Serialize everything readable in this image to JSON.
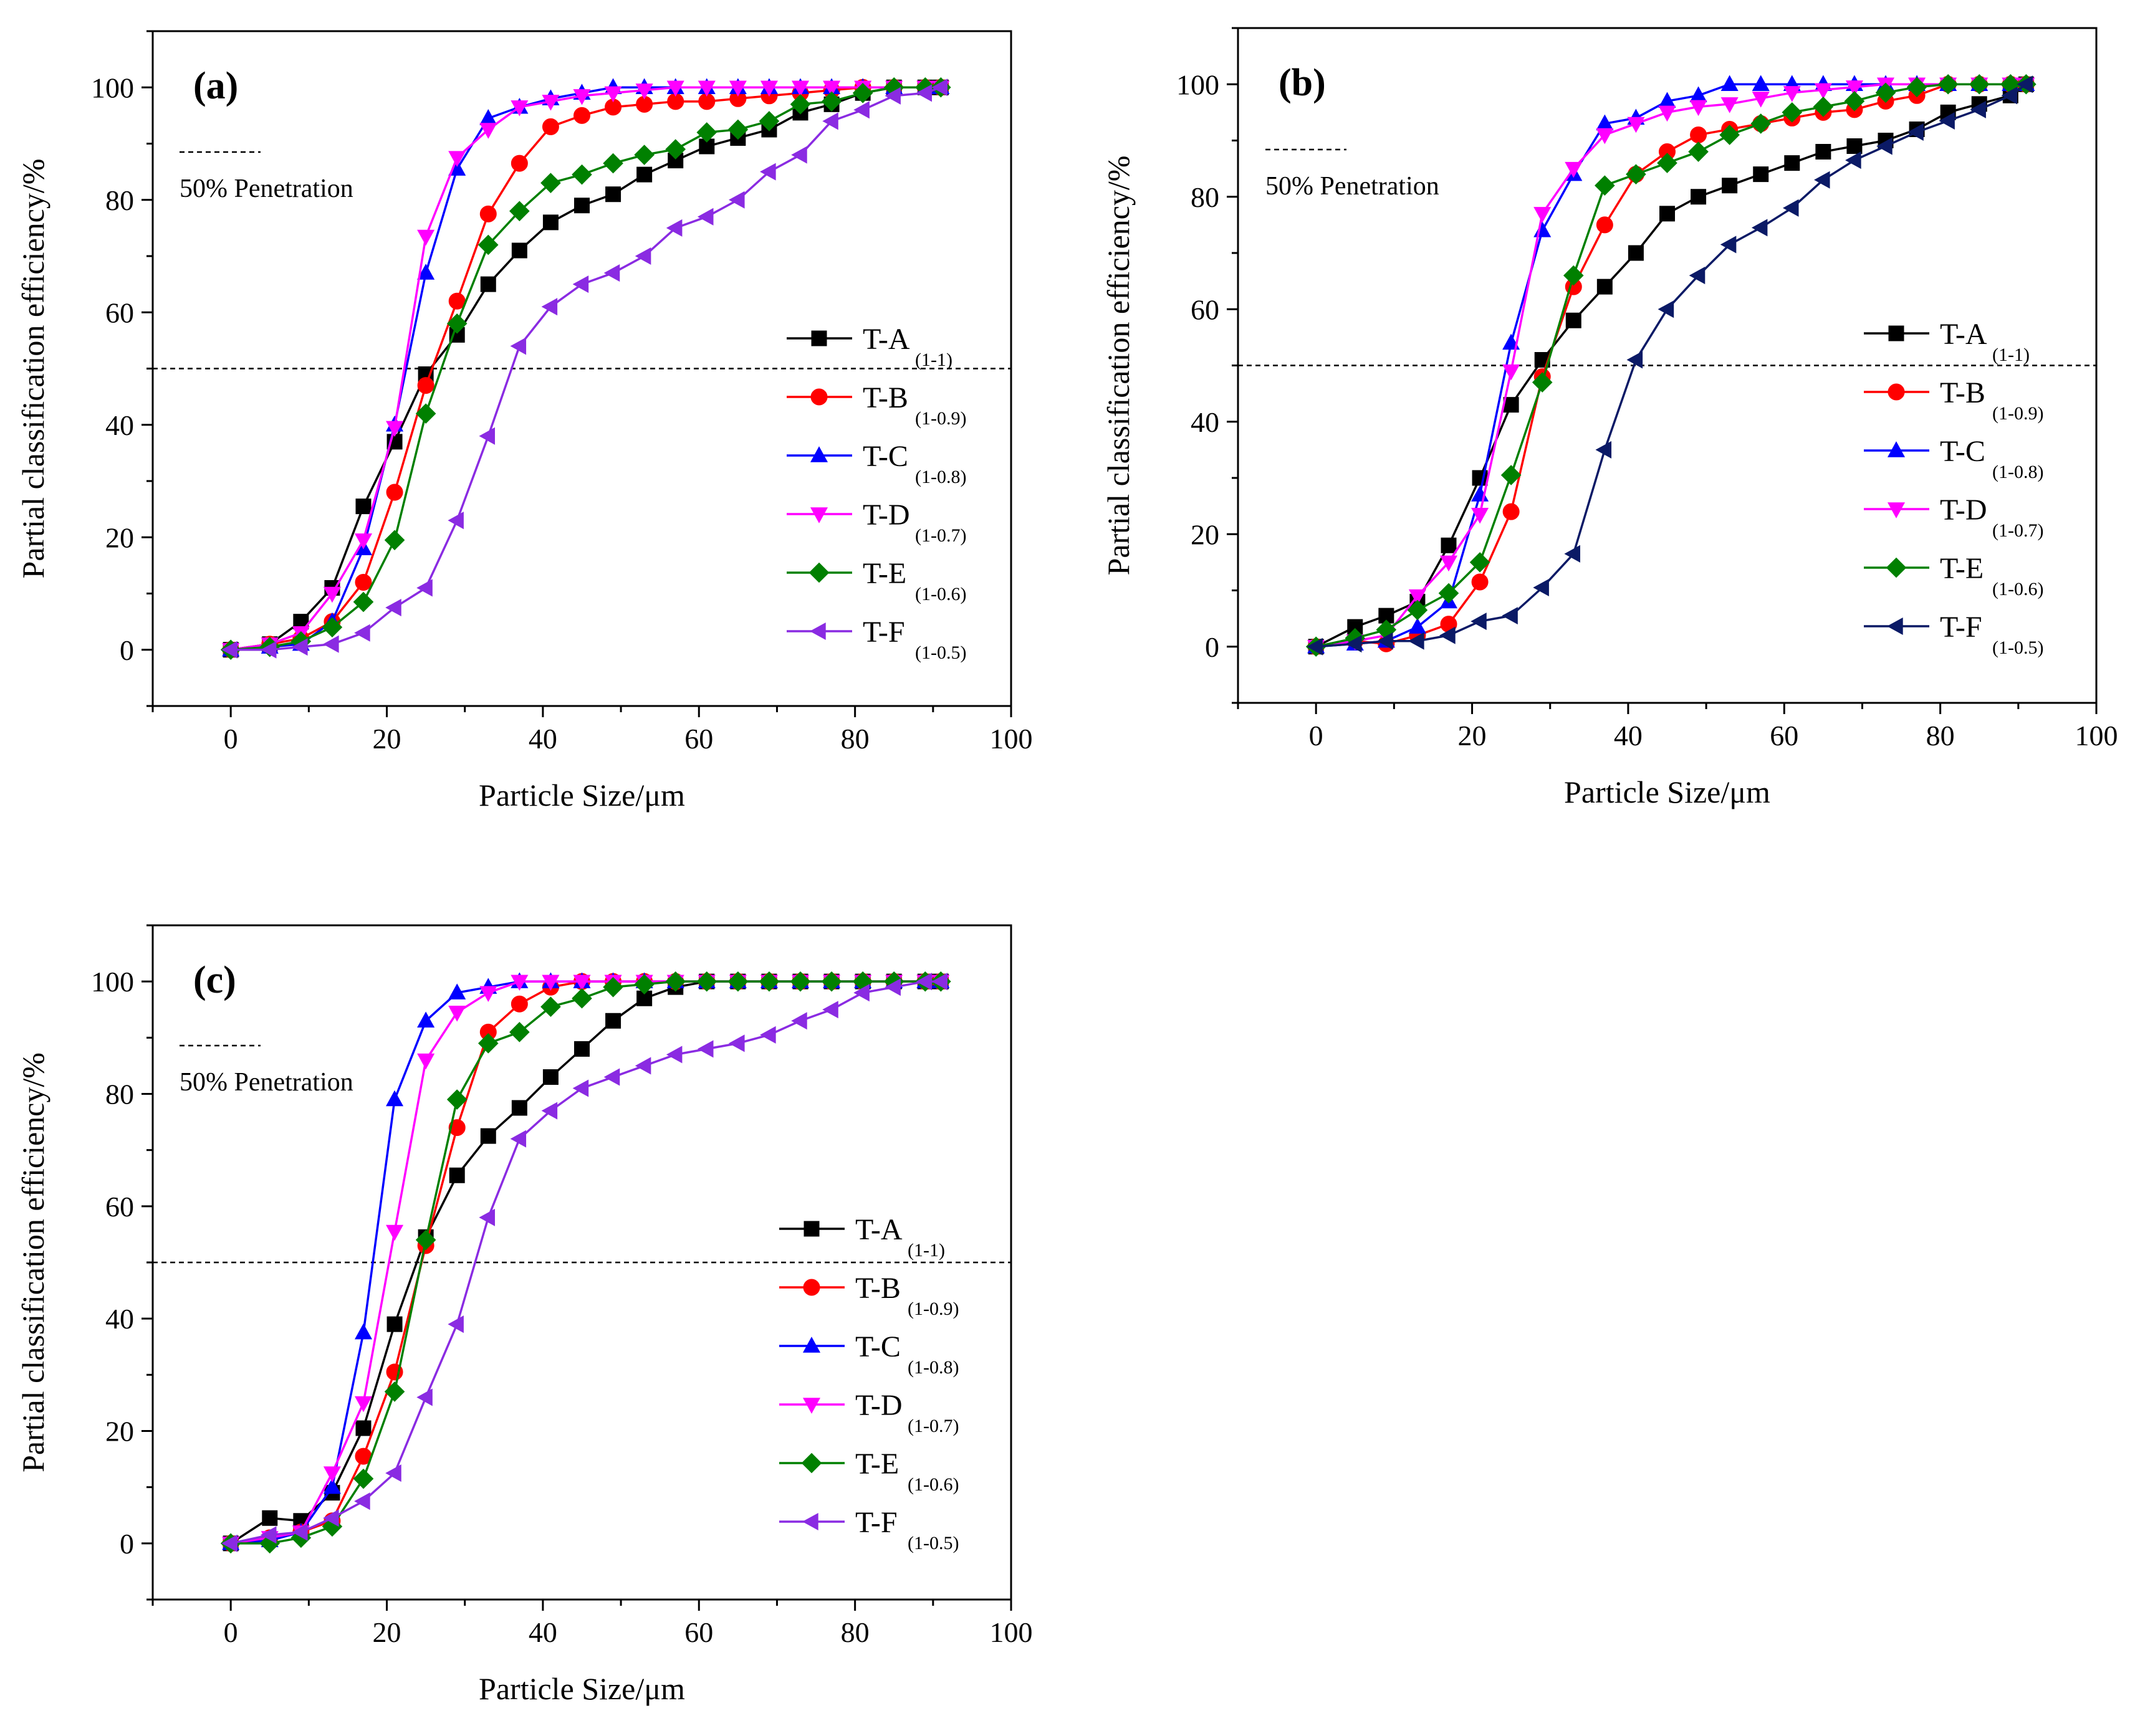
{
  "figure": {
    "description_panels": [
      "a",
      "b",
      "c"
    ]
  },
  "colors": {
    "T-A": "#000000",
    "T-B": "#ff0000",
    "T-C": "#0000ff",
    "T-D": "#ff00ff",
    "T-E": "#008000",
    "T-F_a": "#8a2be2",
    "T-F_b": "#0b1a66",
    "T-F_c": "#8a2be2"
  },
  "chart_data": [
    {
      "type": "line",
      "panel_label": "(a)",
      "xlabel": "Particle Size/μm",
      "ylabel": "Partial classification efficiency/%",
      "xlim": [
        -10,
        100
      ],
      "ylim": [
        -10,
        110
      ],
      "xticks": [
        0,
        20,
        40,
        60,
        80,
        100
      ],
      "yticks": [
        0,
        20,
        40,
        60,
        80,
        100
      ],
      "reference_line": {
        "y": 50,
        "style": "dashed",
        "legend_text": "50% Penetration"
      },
      "x": [
        0,
        5,
        9,
        13,
        17,
        21,
        25,
        29,
        33,
        37,
        41,
        45,
        49,
        53,
        57,
        61,
        65,
        69,
        73,
        77,
        81,
        85,
        89,
        91
      ],
      "series": [
        {
          "name": "T-A",
          "subscript": "(1-1)",
          "marker": "square",
          "color_key": "T-A",
          "values": [
            0,
            1,
            5,
            11,
            25.5,
            37,
            49,
            56,
            65,
            71,
            76,
            79,
            81,
            84.5,
            87,
            89.5,
            91,
            92.5,
            95.5,
            97,
            99,
            100,
            100,
            100
          ]
        },
        {
          "name": "T-B",
          "subscript": "(1-0.9)",
          "marker": "circle",
          "color_key": "T-B",
          "values": [
            0,
            1,
            2,
            5,
            12,
            28,
            47,
            62,
            77.5,
            86.5,
            93,
            95,
            96.5,
            97,
            97.5,
            97.5,
            98,
            98.5,
            99,
            99.5,
            100,
            100,
            100,
            100
          ]
        },
        {
          "name": "T-C",
          "subscript": "(1-0.8)",
          "marker": "triangle-up",
          "color_key": "T-C",
          "values": [
            0,
            0.5,
            1,
            5,
            18,
            40,
            67,
            85.5,
            94.5,
            96.5,
            98,
            99,
            100,
            100,
            100,
            100,
            100,
            100,
            100,
            100,
            100,
            100,
            100,
            100
          ]
        },
        {
          "name": "T-D",
          "subscript": "(1-0.7)",
          "marker": "triangle-down",
          "color_key": "T-D",
          "values": [
            0,
            1,
            3,
            10,
            19.5,
            39.5,
            73.5,
            87.5,
            92.5,
            96.5,
            97.5,
            98.5,
            99,
            99.5,
            100,
            100,
            100,
            100,
            100,
            100,
            100,
            100,
            100,
            100
          ]
        },
        {
          "name": "T-E",
          "subscript": "(1-0.6)",
          "marker": "diamond",
          "color_key": "T-E",
          "values": [
            0,
            0.5,
            1.5,
            4,
            8.5,
            19.5,
            42,
            58,
            72,
            78,
            83,
            84.5,
            86.5,
            88,
            89,
            92,
            92.5,
            94,
            97,
            97.5,
            99,
            100,
            100,
            100
          ]
        },
        {
          "name": "T-F",
          "subscript": "(1-0.5)",
          "marker": "triangle-left",
          "color_key": "T-F_a",
          "values": [
            0,
            0,
            0.5,
            1,
            3,
            7.5,
            11,
            23,
            38,
            54,
            61,
            65,
            67,
            70,
            75,
            77,
            80,
            85,
            88,
            94,
            96,
            98.5,
            99,
            100
          ]
        }
      ]
    },
    {
      "type": "line",
      "panel_label": "(b)",
      "xlabel": "Particle Size/μm",
      "ylabel": "Partial classification efficiency/%",
      "xlim": [
        -10,
        100
      ],
      "ylim": [
        -10,
        110
      ],
      "xticks": [
        0,
        20,
        40,
        60,
        80,
        100
      ],
      "yticks": [
        0,
        20,
        40,
        60,
        80,
        100
      ],
      "reference_line": {
        "y": 50,
        "style": "dashed",
        "legend_text": "50% Penetration"
      },
      "x": [
        0,
        5,
        9,
        13,
        17,
        21,
        25,
        29,
        33,
        37,
        41,
        45,
        49,
        53,
        57,
        61,
        65,
        69,
        73,
        77,
        81,
        85,
        89,
        91
      ],
      "series": [
        {
          "name": "T-A",
          "subscript": "(1-1)",
          "marker": "square",
          "color_key": "T-A",
          "values": [
            0,
            3.5,
            5.5,
            8,
            18,
            30,
            43,
            51,
            58,
            64,
            70,
            77,
            80,
            82,
            84,
            86,
            88,
            89,
            90,
            92,
            95,
            96.5,
            98,
            100
          ]
        },
        {
          "name": "T-B",
          "subscript": "(1-0.9)",
          "marker": "circle",
          "color_key": "T-B",
          "values": [
            0,
            1,
            0.5,
            2,
            4,
            11.5,
            24,
            48,
            64,
            75,
            84,
            88,
            91,
            92,
            93,
            94,
            95,
            95.5,
            97,
            98,
            100,
            100,
            100,
            100
          ]
        },
        {
          "name": "T-C",
          "subscript": "(1-0.8)",
          "marker": "triangle-up",
          "color_key": "T-C",
          "values": [
            0,
            0.5,
            1,
            3.5,
            8,
            27,
            54,
            74,
            84,
            93,
            94,
            97,
            98,
            100,
            100,
            100,
            100,
            100,
            100,
            100,
            100,
            100,
            100,
            100
          ]
        },
        {
          "name": "T-D",
          "subscript": "(1-0.7)",
          "marker": "triangle-down",
          "color_key": "T-D",
          "values": [
            0,
            1,
            2,
            9,
            15,
            23.5,
            49,
            77,
            85,
            91,
            93,
            95,
            96,
            96.5,
            97.5,
            98.5,
            99,
            99.5,
            100,
            100,
            100,
            100,
            100,
            100
          ]
        },
        {
          "name": "T-E",
          "subscript": "(1-0.6)",
          "marker": "diamond",
          "color_key": "T-E",
          "values": [
            0,
            1.5,
            3,
            6.5,
            9.5,
            15,
            30.5,
            47,
            66,
            82,
            84,
            86,
            88,
            91,
            93,
            95,
            96,
            97,
            98.5,
            99.5,
            100,
            100,
            100,
            100
          ]
        },
        {
          "name": "T-F",
          "subscript": "(1-0.5)",
          "marker": "triangle-left",
          "color_key": "T-F_b",
          "values": [
            0,
            0.5,
            1,
            1,
            2,
            4.5,
            5.5,
            10.5,
            16.5,
            35,
            51,
            60,
            66,
            71.5,
            74.5,
            78,
            83,
            86.5,
            89,
            91.5,
            93.5,
            95.5,
            98,
            100
          ]
        }
      ]
    },
    {
      "type": "line",
      "panel_label": "(c)",
      "xlabel": "Particle Size/μm",
      "ylabel": "Partial classification efficiency/%",
      "xlim": [
        -10,
        100
      ],
      "ylim": [
        -10,
        110
      ],
      "xticks": [
        0,
        20,
        40,
        60,
        80,
        100
      ],
      "yticks": [
        0,
        20,
        40,
        60,
        80,
        100
      ],
      "reference_line": {
        "y": 50,
        "style": "dashed",
        "legend_text": "50% Penetration"
      },
      "x": [
        0,
        5,
        9,
        13,
        17,
        21,
        25,
        29,
        33,
        37,
        41,
        45,
        49,
        53,
        57,
        61,
        65,
        69,
        73,
        77,
        81,
        85,
        89,
        91
      ],
      "series": [
        {
          "name": "T-A",
          "subscript": "(1-1)",
          "marker": "square",
          "color_key": "T-A",
          "values": [
            0,
            4.5,
            4,
            9,
            20.5,
            39,
            54.5,
            65.5,
            72.5,
            77.5,
            83,
            88,
            93,
            97,
            99,
            100,
            100,
            100,
            100,
            100,
            100,
            100,
            100,
            100
          ]
        },
        {
          "name": "T-B",
          "subscript": "(1-0.9)",
          "marker": "circle",
          "color_key": "T-B",
          "values": [
            0,
            1,
            2,
            4,
            15.5,
            30.5,
            53,
            74,
            91,
            96,
            99,
            100,
            100,
            100,
            100,
            100,
            100,
            100,
            100,
            100,
            100,
            100,
            100,
            100
          ]
        },
        {
          "name": "T-C",
          "subscript": "(1-0.8)",
          "marker": "triangle-up",
          "color_key": "T-C",
          "values": [
            0,
            0.5,
            2,
            10,
            37.5,
            79,
            93,
            98,
            99,
            100,
            100,
            100,
            100,
            100,
            100,
            100,
            100,
            100,
            100,
            100,
            100,
            100,
            100,
            100
          ]
        },
        {
          "name": "T-D",
          "subscript": "(1-0.7)",
          "marker": "triangle-down",
          "color_key": "T-D",
          "values": [
            0,
            1,
            2,
            12.5,
            25,
            55.5,
            86,
            94.5,
            98,
            100,
            100,
            100,
            100,
            100,
            100,
            100,
            100,
            100,
            100,
            100,
            100,
            100,
            100,
            100
          ]
        },
        {
          "name": "T-E",
          "subscript": "(1-0.6)",
          "marker": "diamond",
          "color_key": "T-E",
          "values": [
            0,
            0,
            1,
            3,
            11.5,
            27,
            54,
            79,
            89,
            91,
            95.5,
            97,
            99,
            99.5,
            100,
            100,
            100,
            100,
            100,
            100,
            100,
            100,
            100,
            100
          ]
        },
        {
          "name": "T-F",
          "subscript": "(1-0.5)",
          "marker": "triangle-left",
          "color_key": "T-F_c",
          "values": [
            0,
            1.5,
            2,
            4.5,
            7.5,
            12.5,
            26,
            39,
            58,
            72,
            77,
            81,
            83,
            85,
            87,
            88,
            89,
            90.5,
            93,
            95,
            98,
            99,
            100,
            100
          ]
        }
      ]
    }
  ]
}
